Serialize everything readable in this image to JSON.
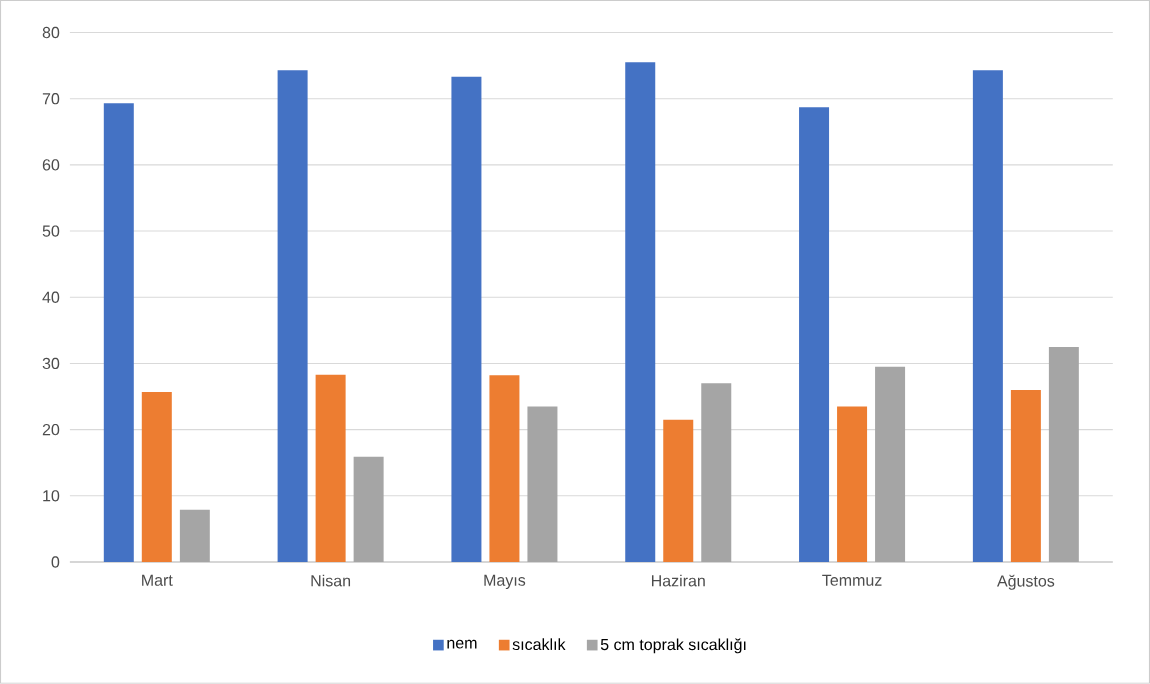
{
  "chart_data": {
    "type": "bar",
    "categories": [
      "Mart",
      "Nisan",
      "Mayıs",
      "Haziran",
      "Temmuz",
      "Ağustos"
    ],
    "series": [
      {
        "name": "nem",
        "color": "#4472c4",
        "values": [
          69.3,
          74.3,
          73.3,
          75.5,
          68.7,
          74.3
        ]
      },
      {
        "name": "sıcaklık",
        "color": "#ed7d31",
        "values": [
          25.7,
          28.3,
          28.2,
          21.5,
          23.5,
          26.0
        ]
      },
      {
        "name": "5 cm toprak sıcaklığı",
        "color": "#a5a5a5",
        "values": [
          7.9,
          15.9,
          23.5,
          27.0,
          29.5,
          32.5
        ]
      }
    ],
    "ylim": [
      0,
      80
    ],
    "yticks": [
      0,
      10,
      20,
      30,
      40,
      50,
      60,
      70,
      80
    ],
    "grid": "y",
    "legend": "bottom"
  }
}
